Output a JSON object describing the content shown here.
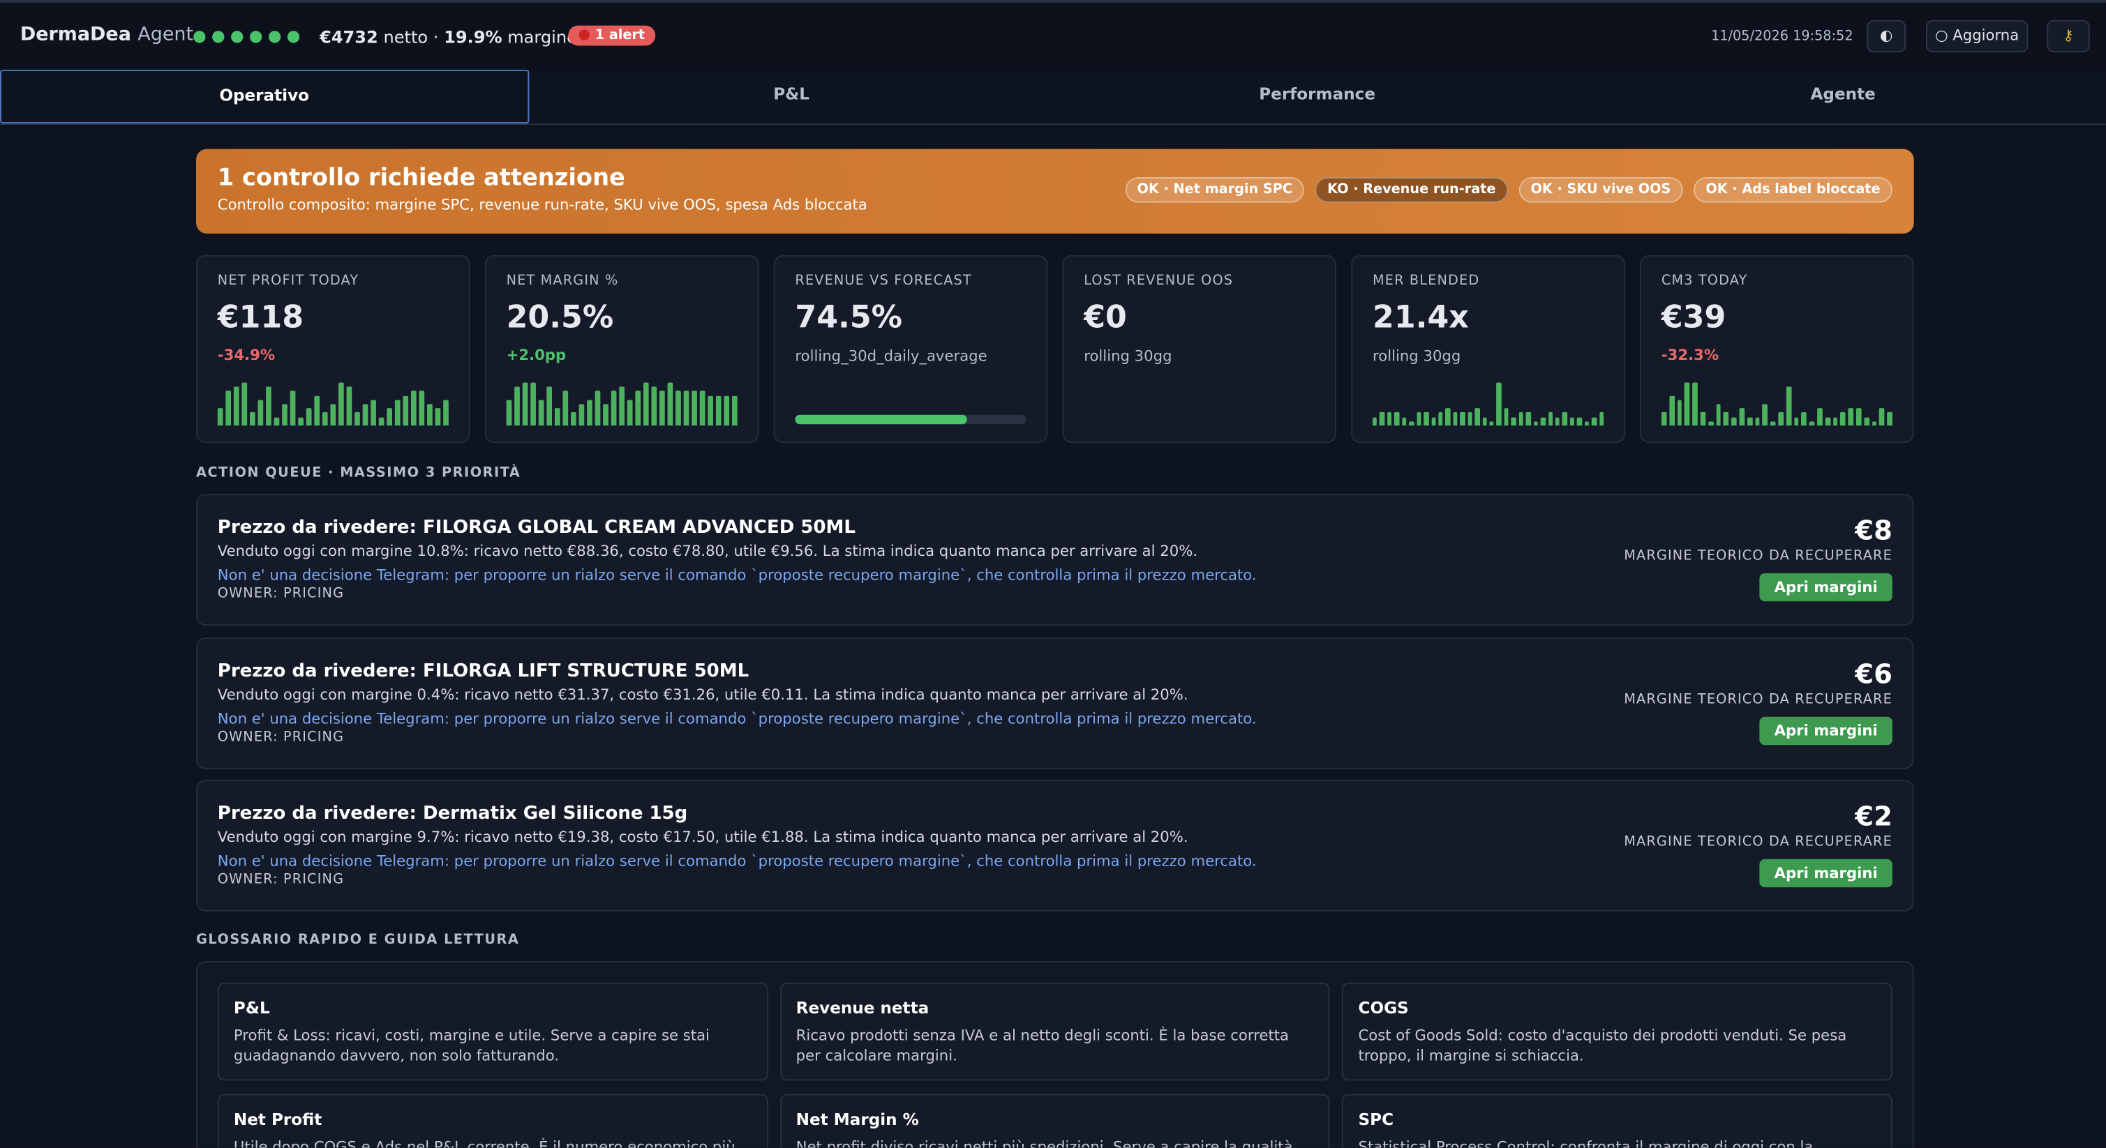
{
  "header": {
    "brand": "DermaDea",
    "brand_sub": "Agent",
    "net_value": "€4732",
    "net_label": "netto ·",
    "margin_value": "19.9%",
    "margin_label": "margine",
    "alert": "1 alert",
    "datetime": "11/05/2026 19:58:52",
    "refresh": "○ Aggiorna"
  },
  "tabs": [
    "Operativo",
    "P&L",
    "Performance",
    "Agente"
  ],
  "banner": {
    "title": "1 controllo richiede attenzione",
    "subtitle": "Controllo composito: margine SPC, revenue run-rate, SKU vive OOS, spesa Ads bloccata",
    "checks": [
      "OK · Net margin SPC",
      "KO · Revenue run-rate",
      "OK · SKU vive OOS",
      "OK · Ads label bloccate"
    ]
  },
  "kpis": [
    {
      "label": "NET PROFIT TODAY",
      "value": "€118",
      "delta": "-34.9%",
      "spark": [
        4,
        8,
        9,
        10,
        3,
        6,
        9,
        2,
        5,
        8,
        2,
        4,
        7,
        3,
        5,
        10,
        9,
        3,
        5,
        6,
        2,
        4,
        6,
        7,
        8,
        8,
        5,
        4,
        6
      ]
    },
    {
      "label": "NET MARGIN %",
      "value": "20.5%",
      "delta": "+2.0pp",
      "spark": [
        6,
        9,
        10,
        10,
        6,
        9,
        4,
        8,
        3,
        5,
        6,
        8,
        5,
        8,
        9,
        6,
        8,
        10,
        9,
        8,
        10,
        8,
        8,
        8,
        8,
        7,
        7,
        7,
        7
      ]
    },
    {
      "label": "REVENUE VS FORECAST",
      "value": "74.5%",
      "note": "rolling_30d_daily_average",
      "progress": 74.5
    },
    {
      "label": "LOST REVENUE OOS",
      "value": "€0",
      "note": "rolling 30gg"
    },
    {
      "label": "MER BLENDED",
      "value": "21.4x",
      "note": "rolling 30gg",
      "spark": [
        2,
        3,
        3,
        3,
        2,
        1,
        3,
        3,
        2,
        3,
        4,
        3,
        3,
        3,
        4,
        2,
        1,
        10,
        4,
        2,
        3,
        3,
        1,
        2,
        3,
        2,
        3,
        2,
        2,
        1,
        2,
        3
      ]
    },
    {
      "label": "CM3 TODAY",
      "value": "€39",
      "delta": "-32.3%",
      "spark": [
        3,
        7,
        6,
        10,
        10,
        3,
        1,
        5,
        3,
        2,
        4,
        2,
        2,
        5,
        1,
        3,
        9,
        2,
        3,
        1,
        4,
        2,
        2,
        3,
        4,
        4,
        2,
        1,
        4,
        3
      ]
    }
  ],
  "queue": {
    "title": "ACTION QUEUE · MASSIMO 3 PRIORITÀ",
    "items": [
      {
        "title": "Prezzo da rivedere: FILORGA GLOBAL CREAM ADVANCED 50ML",
        "desc": "Venduto oggi con margine 10.8%: ricavo netto €88.36, costo €78.80, utile €9.56. La stima indica quanto manca per arrivare al 20%.",
        "note": "Non e' una decisione Telegram: per proporre un rialzo serve il comando `proposte recupero margine`, che controlla prima il prezzo mercato.",
        "owner": "OWNER: PRICING",
        "amount": "€8",
        "amount_label": "MARGINE TEORICO DA RECUPERARE",
        "button": "Apri margini"
      },
      {
        "title": "Prezzo da rivedere: FILORGA LIFT STRUCTURE 50ML",
        "desc": "Venduto oggi con margine 0.4%: ricavo netto €31.37, costo €31.26, utile €0.11. La stima indica quanto manca per arrivare al 20%.",
        "note": "Non e' una decisione Telegram: per proporre un rialzo serve il comando `proposte recupero margine`, che controlla prima il prezzo mercato.",
        "owner": "OWNER: PRICING",
        "amount": "€6",
        "amount_label": "MARGINE TEORICO DA RECUPERARE",
        "button": "Apri margini"
      },
      {
        "title": "Prezzo da rivedere: Dermatix Gel Silicone 15g",
        "desc": "Venduto oggi con margine 9.7%: ricavo netto €19.38, costo €17.50, utile €1.88. La stima indica quanto manca per arrivare al 20%.",
        "note": "Non e' una decisione Telegram: per proporre un rialzo serve il comando `proposte recupero margine`, che controlla prima il prezzo mercato.",
        "owner": "OWNER: PRICING",
        "amount": "€2",
        "amount_label": "MARGINE TEORICO DA RECUPERARE",
        "button": "Apri margini"
      }
    ]
  },
  "glossary": {
    "title": "GLOSSARIO RAPIDO E GUIDA LETTURA",
    "items": [
      {
        "term": "P&L",
        "text": "Profit & Loss: ricavi, costi, margine e utile. Serve a capire se stai guadagnando davvero, non solo fatturando."
      },
      {
        "term": "Revenue netta",
        "text": "Ricavo prodotti senza IVA e al netto degli sconti. È la base corretta per calcolare margini."
      },
      {
        "term": "COGS",
        "text": "Cost of Goods Sold: costo d'acquisto dei prodotti venduti. Se pesa troppo, il margine si schiaccia."
      },
      {
        "term": "Net Profit",
        "text": "Utile dopo COGS e Ads nel P&L corrente. È il numero economico più"
      },
      {
        "term": "Net Margin %",
        "text": "Net profit diviso ricavi netti più spedizioni. Serve a capire la qualità del"
      },
      {
        "term": "SPC",
        "text": "Statistical Process Control: confronta il margine di oggi con la variabilità"
      }
    ]
  }
}
